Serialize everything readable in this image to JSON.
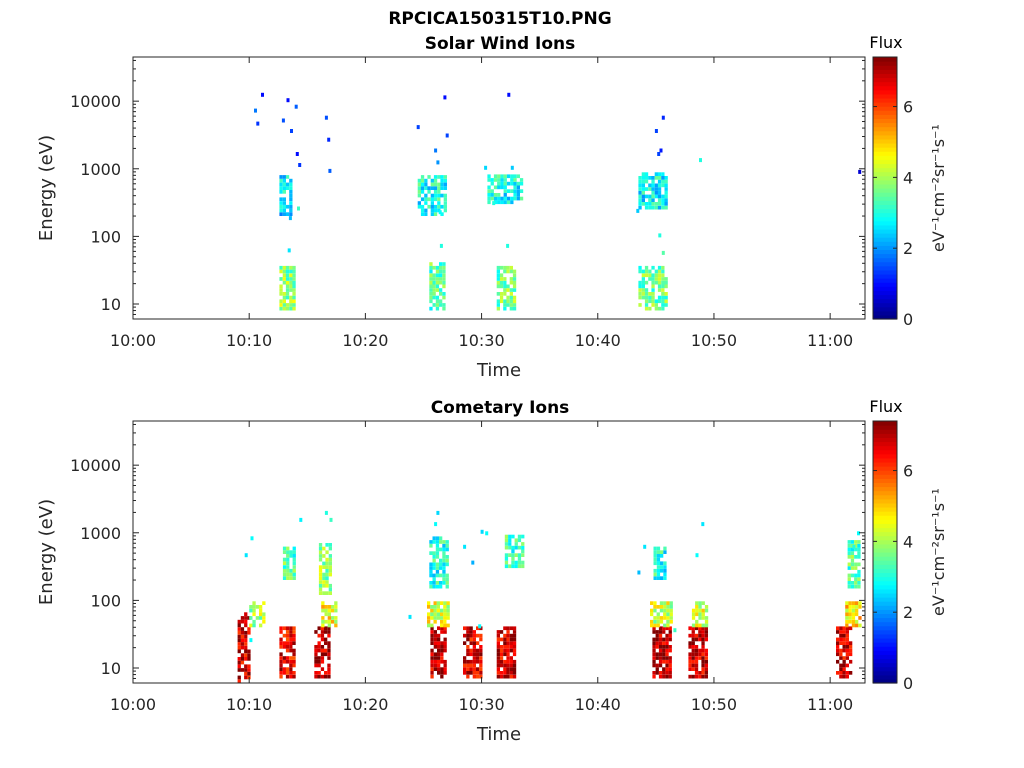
{
  "figure": {
    "title": "RPCICA150315T10.PNG"
  },
  "colors": {
    "axis": "#262626",
    "colormap": [
      "#00007f",
      "#0000ff",
      "#007fff",
      "#00ffff",
      "#7fff7f",
      "#ffff00",
      "#ff7f00",
      "#ff0000",
      "#7f0000"
    ]
  },
  "chart_data": [
    {
      "type": "heatmap",
      "title": "Solar Wind Ions",
      "xlabel": "Time",
      "ylabel": "Energy (eV)",
      "x_ticks": [
        "10:00",
        "10:10",
        "10:20",
        "10:30",
        "10:40",
        "10:50",
        "11:00"
      ],
      "y_ticks": [
        "10",
        "100",
        "1000",
        "10000"
      ],
      "y_scale": "log",
      "xlim_minutes": [
        0,
        63
      ],
      "ylim_ev": [
        6,
        45000
      ],
      "colorbar": {
        "label": "Flux",
        "unit": "eV⁻¹cm⁻²sr⁻¹s⁻¹",
        "ticks": [
          "0",
          "2",
          "4",
          "6"
        ],
        "range": [
          0,
          7.4
        ]
      },
      "blobs": [
        {
          "t": [
            12.6,
            13.8
          ],
          "e": [
            8,
            35
          ],
          "level": 3.8
        },
        {
          "t": [
            12.6,
            13.6
          ],
          "e": [
            200,
            800
          ],
          "level": 2.6
        },
        {
          "t": [
            25.5,
            26.8
          ],
          "e": [
            8,
            40
          ],
          "level": 3.4
        },
        {
          "t": [
            24.5,
            27.0
          ],
          "e": [
            200,
            800
          ],
          "level": 2.9
        },
        {
          "t": [
            31.3,
            32.8
          ],
          "e": [
            8,
            35
          ],
          "level": 3.6
        },
        {
          "t": [
            30.5,
            33.5
          ],
          "e": [
            300,
            800
          ],
          "level": 2.9
        },
        {
          "t": [
            43.5,
            45.8
          ],
          "e": [
            8,
            35
          ],
          "level": 3.6
        },
        {
          "t": [
            43.5,
            45.8
          ],
          "e": [
            250,
            800
          ],
          "level": 2.8
        }
      ],
      "scatter": [
        {
          "t": 10.5,
          "e": 7000,
          "level": 1.8
        },
        {
          "t": 10.7,
          "e": 4500,
          "level": 1.3
        },
        {
          "t": 11.1,
          "e": 12000,
          "level": 1.0
        },
        {
          "t": 12.9,
          "e": 5000,
          "level": 1.5
        },
        {
          "t": 13.3,
          "e": 10000,
          "level": 1.0
        },
        {
          "t": 13.6,
          "e": 3500,
          "level": 1.4
        },
        {
          "t": 14.0,
          "e": 8000,
          "level": 1.6
        },
        {
          "t": 14.1,
          "e": 1600,
          "level": 1.0
        },
        {
          "t": 14.3,
          "e": 1100,
          "level": 1.3
        },
        {
          "t": 16.6,
          "e": 5500,
          "level": 1.5
        },
        {
          "t": 16.8,
          "e": 2600,
          "level": 1.2
        },
        {
          "t": 16.9,
          "e": 900,
          "level": 1.6
        },
        {
          "t": 13.5,
          "e": 180,
          "level": 2.3
        },
        {
          "t": 14.2,
          "e": 250,
          "level": 3.2
        },
        {
          "t": 13.4,
          "e": 60,
          "level": 2.6
        },
        {
          "t": 24.5,
          "e": 4000,
          "level": 1.4
        },
        {
          "t": 26.0,
          "e": 1800,
          "level": 1.8
        },
        {
          "t": 26.8,
          "e": 11000,
          "level": 1.0
        },
        {
          "t": 27.0,
          "e": 3000,
          "level": 1.4
        },
        {
          "t": 26.2,
          "e": 1200,
          "level": 2.0
        },
        {
          "t": 26.4,
          "e": 220,
          "level": 2.8
        },
        {
          "t": 26.5,
          "e": 70,
          "level": 3.0
        },
        {
          "t": 30.3,
          "e": 1000,
          "level": 2.5
        },
        {
          "t": 32.3,
          "e": 12000,
          "level": 1.0
        },
        {
          "t": 32.6,
          "e": 1000,
          "level": 2.4
        },
        {
          "t": 31.0,
          "e": 300,
          "level": 3.0
        },
        {
          "t": 32.2,
          "e": 70,
          "level": 3.0
        },
        {
          "t": 45.0,
          "e": 3500,
          "level": 1.4
        },
        {
          "t": 45.6,
          "e": 5500,
          "level": 1.2
        },
        {
          "t": 45.2,
          "e": 1600,
          "level": 1.4
        },
        {
          "t": 45.4,
          "e": 1800,
          "level": 1.1
        },
        {
          "t": 43.4,
          "e": 230,
          "level": 2.4
        },
        {
          "t": 45.3,
          "e": 100,
          "level": 3.0
        },
        {
          "t": 45.6,
          "e": 55,
          "level": 3.4
        },
        {
          "t": 48.8,
          "e": 1300,
          "level": 3.0
        },
        {
          "t": 62.5,
          "e": 870,
          "level": 0.6
        }
      ]
    },
    {
      "type": "heatmap",
      "title": "Cometary Ions",
      "xlabel": "Time",
      "ylabel": "Energy (eV)",
      "x_ticks": [
        "10:00",
        "10:10",
        "10:20",
        "10:30",
        "10:40",
        "10:50",
        "11:00"
      ],
      "y_ticks": [
        "10",
        "100",
        "1000",
        "10000"
      ],
      "y_scale": "log",
      "xlim_minutes": [
        0,
        63
      ],
      "ylim_ev": [
        6,
        45000
      ],
      "colorbar": {
        "label": "Flux",
        "unit": "eV⁻¹cm⁻²sr⁻¹s⁻¹",
        "ticks": [
          "0",
          "2",
          "4",
          "6"
        ],
        "range": [
          0,
          7.4
        ]
      },
      "blobs": [
        {
          "t": [
            9.0,
            10.0
          ],
          "e": [
            6,
            60
          ],
          "level": 6.8
        },
        {
          "t": [
            10.0,
            11.3
          ],
          "e": [
            40,
            90
          ],
          "level": 4.0
        },
        {
          "t": [
            12.6,
            13.8
          ],
          "e": [
            7,
            40
          ],
          "level": 6.6
        },
        {
          "t": [
            12.9,
            14.0
          ],
          "e": [
            200,
            600
          ],
          "level": 3.4
        },
        {
          "t": [
            15.6,
            16.8
          ],
          "e": [
            7,
            40
          ],
          "level": 7.0
        },
        {
          "t": [
            16.2,
            17.4
          ],
          "e": [
            40,
            90
          ],
          "level": 4.6
        },
        {
          "t": [
            16.0,
            17.0
          ],
          "e": [
            120,
            700
          ],
          "level": 3.8
        },
        {
          "t": [
            25.6,
            26.8
          ],
          "e": [
            7,
            40
          ],
          "level": 6.9
        },
        {
          "t": [
            25.3,
            27.0
          ],
          "e": [
            40,
            90
          ],
          "level": 4.4
        },
        {
          "t": [
            25.5,
            27.0
          ],
          "e": [
            150,
            800
          ],
          "level": 3.0
        },
        {
          "t": [
            28.4,
            29.9
          ],
          "e": [
            7,
            40
          ],
          "level": 6.7
        },
        {
          "t": [
            31.3,
            32.8
          ],
          "e": [
            7,
            40
          ],
          "level": 6.8
        },
        {
          "t": [
            32.0,
            33.5
          ],
          "e": [
            300,
            900
          ],
          "level": 3.2
        },
        {
          "t": [
            44.7,
            46.2
          ],
          "e": [
            7,
            40
          ],
          "level": 7.0
        },
        {
          "t": [
            44.5,
            46.3
          ],
          "e": [
            40,
            90
          ],
          "level": 4.2
        },
        {
          "t": [
            44.8,
            45.8
          ],
          "e": [
            200,
            600
          ],
          "level": 3.0
        },
        {
          "t": [
            47.8,
            49.3
          ],
          "e": [
            7,
            40
          ],
          "level": 6.9
        },
        {
          "t": [
            48.1,
            49.3
          ],
          "e": [
            40,
            90
          ],
          "level": 4.4
        },
        {
          "t": [
            60.5,
            61.8
          ],
          "e": [
            7,
            40
          ],
          "level": 6.8
        },
        {
          "t": [
            61.3,
            62.5
          ],
          "e": [
            40,
            90
          ],
          "level": 4.8
        },
        {
          "t": [
            61.5,
            62.5
          ],
          "e": [
            150,
            700
          ],
          "level": 3.4
        }
      ],
      "scatter": [
        {
          "t": 10.2,
          "e": 800,
          "level": 2.8
        },
        {
          "t": 9.7,
          "e": 450,
          "level": 2.6
        },
        {
          "t": 16.6,
          "e": 1900,
          "level": 3.0
        },
        {
          "t": 17.0,
          "e": 1500,
          "level": 3.2
        },
        {
          "t": 14.4,
          "e": 1500,
          "level": 2.7
        },
        {
          "t": 26.2,
          "e": 1900,
          "level": 2.5
        },
        {
          "t": 26.0,
          "e": 1300,
          "level": 2.8
        },
        {
          "t": 28.5,
          "e": 600,
          "level": 2.6
        },
        {
          "t": 29.2,
          "e": 350,
          "level": 2.2
        },
        {
          "t": 30.0,
          "e": 1000,
          "level": 2.5
        },
        {
          "t": 30.4,
          "e": 950,
          "level": 2.8
        },
        {
          "t": 43.5,
          "e": 250,
          "level": 2.3
        },
        {
          "t": 44.0,
          "e": 600,
          "level": 2.6
        },
        {
          "t": 48.5,
          "e": 450,
          "level": 2.8
        },
        {
          "t": 49.0,
          "e": 1300,
          "level": 2.6
        },
        {
          "t": 62.4,
          "e": 950,
          "level": 2.8
        },
        {
          "t": 62.0,
          "e": 600,
          "level": 3.0
        },
        {
          "t": 10.1,
          "e": 25,
          "level": 2.8
        },
        {
          "t": 23.8,
          "e": 55,
          "level": 2.6
        },
        {
          "t": 29.8,
          "e": 40,
          "level": 2.8
        },
        {
          "t": 46.6,
          "e": 35,
          "level": 3.2
        }
      ]
    }
  ]
}
